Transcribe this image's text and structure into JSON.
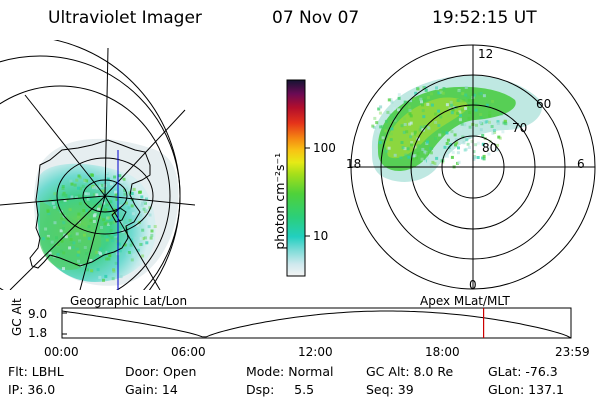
{
  "header": {
    "instrument": "Ultraviolet Imager",
    "date": "07 Nov 07",
    "time": "19:52:15 UT"
  },
  "colorbar": {
    "label": "photon cm⁻²s⁻¹",
    "ticks": [
      "100",
      "10"
    ]
  },
  "polar_plot": {
    "mlt_labels": {
      "top": "12",
      "left": "18",
      "right": "6",
      "bottom": "0"
    },
    "lat_labels": [
      "60",
      "70",
      "80"
    ]
  },
  "panel_labels": {
    "left": "Geographic Lat/Lon",
    "right": "Apex MLat/MLT"
  },
  "altitude_plot": {
    "ylabel": "GC Alt",
    "y_ticks": [
      "9.0",
      "1.8"
    ],
    "x_ticks": [
      "00:00",
      "06:00",
      "12:00",
      "18:00",
      "23:59"
    ],
    "marker_time": "19:52",
    "marker_color": "#cc0000"
  },
  "status": {
    "flt": "Flt: LBHL",
    "ip": "IP: 36.0",
    "door": "Door: Open",
    "gain": "Gain: 14",
    "mode": "Mode: Normal",
    "dsp": "Dsp:     5.5",
    "gcalt": "GC Alt: 8.0 Re",
    "seq": "Seq: 39",
    "glat": "GLat: -76.3",
    "glon": "GLon: 137.1"
  }
}
